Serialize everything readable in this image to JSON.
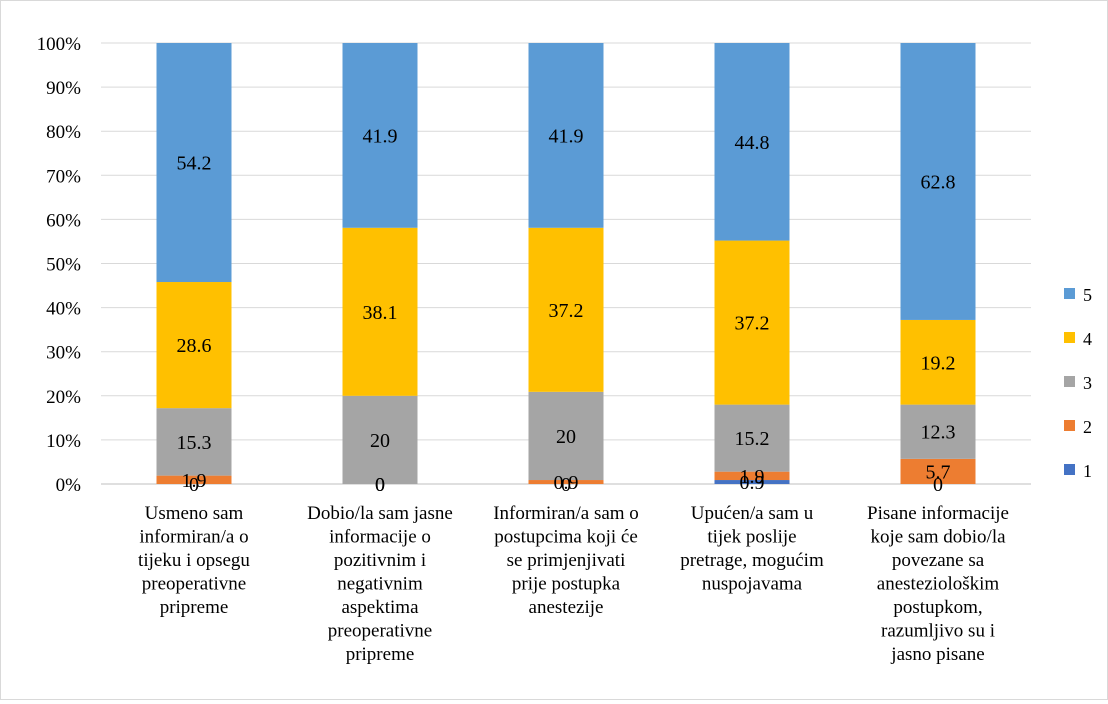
{
  "chart_data": {
    "type": "bar",
    "stacked": true,
    "percent_stacked": true,
    "categories": [
      [
        "Usmeno sam",
        "informiran/a o",
        "tijeku i opsegu",
        "preoperativne",
        "pripreme"
      ],
      [
        "Dobio/la sam jasne",
        "informacije o",
        "pozitivnim i",
        "negativnim",
        "aspektima",
        "preoperativne",
        "pripreme"
      ],
      [
        "Informiran/a sam o",
        "postupcima koji će",
        "se primjenjivati",
        "prije postupka",
        "anestezije"
      ],
      [
        "Upućen/a sam u",
        "tijek poslije",
        "pretrage, mogućim",
        "nuspojavama"
      ],
      [
        "Pisane informacije",
        "koje sam dobio/la",
        "povezane sa",
        "anesteziološkim",
        "postupkom,",
        "razumljivo su i",
        "jasno pisane"
      ]
    ],
    "series": [
      {
        "name": "1",
        "color": "#4472C4",
        "values": [
          0,
          0,
          0,
          0.9,
          0
        ],
        "labels": [
          "0",
          "0",
          "0",
          "0.9",
          "0"
        ]
      },
      {
        "name": "2",
        "color": "#ED7D31",
        "values": [
          1.9,
          0,
          0.9,
          1.9,
          5.7
        ],
        "labels": [
          "1.9",
          "0",
          "0.9",
          "1.9",
          "5.7"
        ]
      },
      {
        "name": "3",
        "color": "#A5A5A5",
        "values": [
          15.3,
          20,
          20,
          15.2,
          12.3
        ],
        "labels": [
          "15.3",
          "20",
          "20",
          "15.2",
          "12.3"
        ]
      },
      {
        "name": "4",
        "color": "#FFC000",
        "values": [
          28.6,
          38.1,
          37.2,
          37.2,
          19.2
        ],
        "labels": [
          "28.6",
          "38.1",
          "37.2",
          "37.2",
          "19.2"
        ]
      },
      {
        "name": "5",
        "color": "#5B9BD5",
        "values": [
          54.2,
          41.9,
          41.9,
          44.8,
          62.8
        ],
        "labels": [
          "54.2",
          "41.9",
          "41.9",
          "44.8",
          "62.8"
        ]
      }
    ],
    "y_ticks": [
      "0%",
      "10%",
      "20%",
      "30%",
      "40%",
      "50%",
      "60%",
      "70%",
      "80%",
      "90%",
      "100%"
    ],
    "ylim": [
      0,
      100
    ],
    "grid": true,
    "legend": {
      "position": "right",
      "order": [
        "5",
        "4",
        "3",
        "2",
        "1"
      ]
    },
    "title": "",
    "xlabel": "",
    "ylabel": ""
  }
}
